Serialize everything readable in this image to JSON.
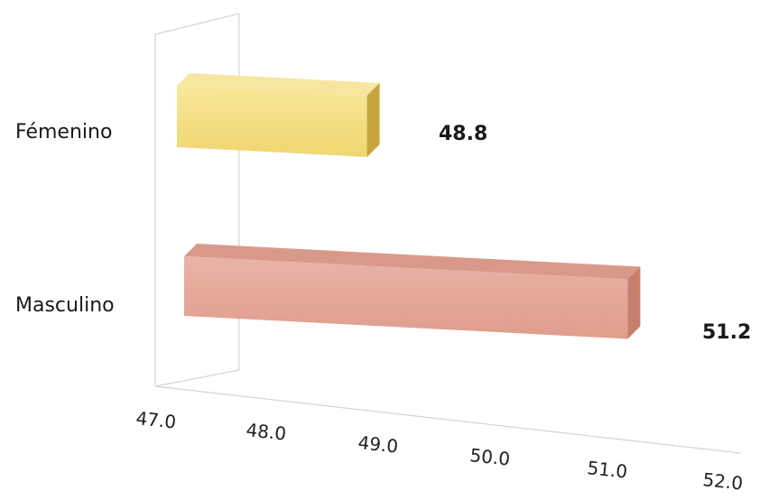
{
  "chart_data": {
    "type": "bar",
    "orientation": "horizontal",
    "style": "3d",
    "categories": [
      "Fémenino",
      "Masculino"
    ],
    "values": [
      48.8,
      51.2
    ],
    "data_labels": [
      "48.8",
      "51.2"
    ],
    "xlim": [
      47.0,
      52.0
    ],
    "x_ticks": [
      "47.0",
      "48.0",
      "49.0",
      "50.0",
      "51.0",
      "52.0"
    ],
    "colors": [
      "#f2dc76",
      "#e2a293"
    ],
    "grid": false,
    "legend": "none"
  }
}
